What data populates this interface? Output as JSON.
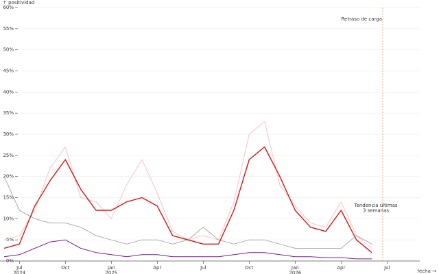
{
  "chart_data": {
    "type": "line",
    "y_label": "↑ positividad",
    "x_label": "fecha →",
    "x": [
      "2024-06",
      "2024-07",
      "2024-08",
      "2024-09",
      "2024-10",
      "2024-11",
      "2024-12",
      "2025-01",
      "2025-02",
      "2025-03",
      "2025-04",
      "2025-05",
      "2025-06",
      "2025-07",
      "2025-08",
      "2025-09",
      "2025-10",
      "2025-11",
      "2025-12",
      "2026-01",
      "2026-02",
      "2026-03",
      "2026-04",
      "2026-05",
      "2026-06"
    ],
    "series": [
      {
        "color": "#f8b4b4",
        "values": [
          5,
          6,
          12,
          22,
          27,
          15,
          14,
          10,
          18,
          24,
          16,
          7,
          5,
          6,
          5,
          14,
          30,
          33,
          18,
          13,
          9,
          8,
          14,
          6,
          3
        ]
      },
      {
        "color": "#aaaaaa",
        "values": [
          20,
          12,
          10,
          9,
          9,
          8,
          6,
          5,
          4,
          5,
          5,
          4,
          5,
          8,
          5,
          4,
          5,
          5,
          4,
          3,
          3,
          3,
          3,
          6,
          4
        ]
      },
      {
        "color": "#7b1d8c",
        "values": [
          1,
          1.5,
          3,
          4.5,
          5,
          3,
          2,
          1.5,
          1,
          1.5,
          1.5,
          1,
          1,
          1,
          1,
          1.5,
          2,
          2,
          1.5,
          1,
          1,
          0.8,
          0.8,
          0.5,
          0.5
        ]
      },
      {
        "color": "#e01010",
        "values": [
          3,
          4,
          13,
          19,
          24,
          17,
          12,
          12,
          14,
          15,
          13,
          6,
          5,
          4,
          4,
          12,
          24,
          27,
          20,
          12,
          8,
          7,
          12,
          5,
          2
        ]
      }
    ],
    "xlim": [
      "2024-06",
      "2026-09"
    ],
    "xticks": [
      {
        "value": "2024-07",
        "label": "Jul\n2024"
      },
      {
        "value": "2024-10",
        "label": "Oct"
      },
      {
        "value": "2025-01",
        "label": "Jan\n2025"
      },
      {
        "value": "2025-04",
        "label": "Apr"
      },
      {
        "value": "2025-07",
        "label": "Jul"
      },
      {
        "value": "2025-10",
        "label": "Oct"
      },
      {
        "value": "2026-01",
        "label": "Jan\n2026"
      },
      {
        "value": "2026-04",
        "label": "Apr"
      },
      {
        "value": "2026-07",
        "label": "Jul"
      }
    ],
    "ylim": [
      0,
      60
    ],
    "yticks": [
      {
        "value": 0,
        "label": "0%"
      },
      {
        "value": 5,
        "label": "5%"
      },
      {
        "value": 10,
        "label": "10%"
      },
      {
        "value": 15,
        "label": "15%"
      },
      {
        "value": 20,
        "label": "20%"
      },
      {
        "value": 25,
        "label": "25%"
      },
      {
        "value": 30,
        "label": "30%"
      },
      {
        "value": 35,
        "label": "35%"
      },
      {
        "value": 40,
        "label": "40%"
      },
      {
        "value": 45,
        "label": "45%"
      },
      {
        "value": 50,
        "label": "50%"
      },
      {
        "value": 55,
        "label": "55%"
      },
      {
        "value": 60,
        "label": "60%"
      }
    ],
    "grid": true,
    "delay_line": {
      "x": "2026-06",
      "label": "Retraso de carga",
      "color": "#f0a020"
    },
    "trend_note": {
      "label": "Tendencia últimas\n3 semanas",
      "color": "#d02020"
    }
  }
}
